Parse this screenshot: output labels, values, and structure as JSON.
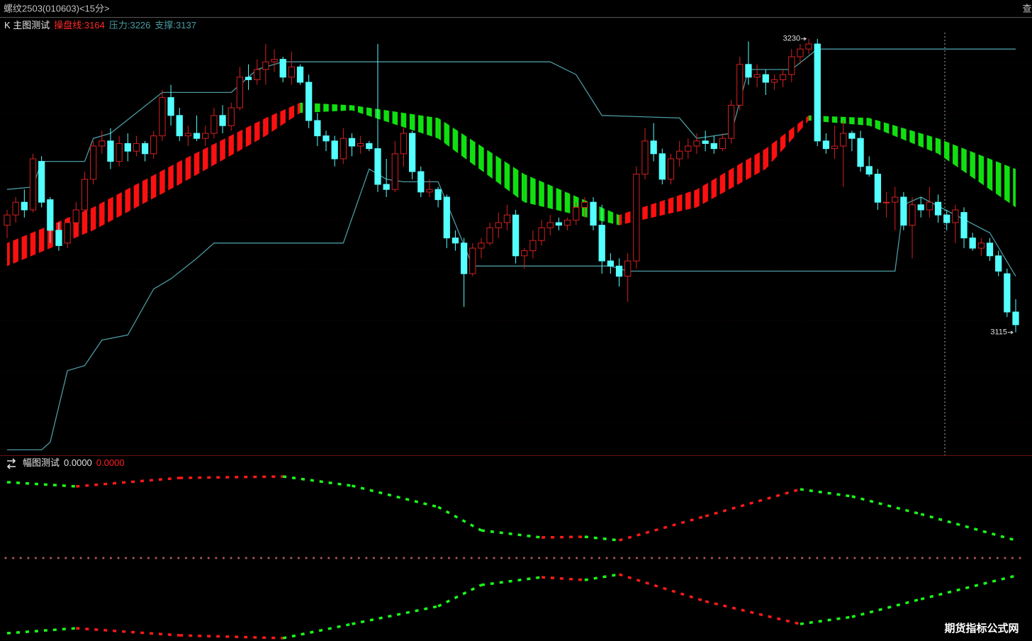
{
  "header": {
    "title": "螺纹2503(010603)<15分>",
    "button": "查"
  },
  "chart_data": [
    {
      "type": "candlestick",
      "title": "K 主图测试",
      "legend": [
        {
          "label": "操盘线:",
          "value": 3164,
          "color": "#ff2a2a"
        },
        {
          "label": "压力:",
          "value": 3226,
          "color": "#4a9aa0"
        },
        {
          "label": "支撑:",
          "value": 3137,
          "color": "#4a9aa0"
        }
      ],
      "xlim": [
        0,
        117
      ],
      "ylim": [
        3068,
        3238
      ],
      "up_color": "#d42020",
      "down_color": "#54ffff",
      "open": [
        3157,
        3161,
        3166,
        3163,
        3182,
        3167,
        3155,
        3150,
        3158,
        3163,
        3175,
        3188,
        3190,
        3182,
        3189,
        3186,
        3189,
        3185,
        3192,
        3207,
        3200,
        3192,
        3193,
        3191,
        3193,
        3200,
        3196,
        3203,
        3215,
        3214,
        3218,
        3221,
        3222,
        3215,
        3219,
        3213,
        3198,
        3192,
        3190,
        3183,
        3191,
        3188,
        3189,
        3187,
        3173,
        3171,
        3185,
        3193,
        3178,
        3170,
        3171,
        3168,
        3152,
        3150,
        3138,
        3148,
        3150,
        3156,
        3158,
        3161,
        3145,
        3147,
        3151,
        3156,
        3158,
        3157,
        3159,
        3164,
        3166,
        3157,
        3143,
        3141,
        3137,
        3143,
        3177,
        3190,
        3185,
        3175,
        3183,
        3186,
        3188,
        3190,
        3189,
        3187,
        3191,
        3204,
        3220,
        3215,
        3216,
        3213,
        3214,
        3216,
        3223,
        3226,
        3228,
        3190,
        3187,
        3188,
        3193,
        3191,
        3180,
        3177,
        3166,
        3166,
        3168,
        3157,
        3165,
        3163,
        3166,
        3161,
        3158,
        3162,
        3152,
        3148,
        3150,
        3145,
        3138,
        3123
      ],
      "high": [
        3163,
        3168,
        3171,
        3185,
        3184,
        3168,
        3158,
        3160,
        3166,
        3178,
        3190,
        3194,
        3195,
        3192,
        3193,
        3192,
        3190,
        3194,
        3210,
        3212,
        3203,
        3196,
        3200,
        3196,
        3203,
        3204,
        3205,
        3219,
        3220,
        3222,
        3228,
        3226,
        3223,
        3225,
        3220,
        3216,
        3201,
        3194,
        3192,
        3195,
        3193,
        3192,
        3190,
        3228,
        3183,
        3190,
        3195,
        3194,
        3180,
        3175,
        3172,
        3169,
        3155,
        3152,
        3150,
        3152,
        3158,
        3162,
        3165,
        3163,
        3148,
        3155,
        3159,
        3161,
        3160,
        3160,
        3166,
        3168,
        3168,
        3165,
        3146,
        3144,
        3146,
        3180,
        3195,
        3197,
        3187,
        3185,
        3190,
        3191,
        3193,
        3194,
        3192,
        3193,
        3206,
        3223,
        3229,
        3220,
        3218,
        3216,
        3218,
        3226,
        3228,
        3230,
        3230,
        3193,
        3196,
        3198,
        3194,
        3194,
        3184,
        3179,
        3170,
        3172,
        3170,
        3168,
        3168,
        3172,
        3169,
        3163,
        3165,
        3164,
        3154,
        3152,
        3152,
        3147,
        3140,
        3128
      ],
      "low": [
        3152,
        3158,
        3160,
        3162,
        3164,
        3150,
        3147,
        3148,
        3156,
        3160,
        3173,
        3185,
        3179,
        3180,
        3182,
        3184,
        3182,
        3183,
        3190,
        3196,
        3190,
        3188,
        3190,
        3188,
        3191,
        3193,
        3194,
        3202,
        3210,
        3212,
        3212,
        3217,
        3213,
        3212,
        3212,
        3195,
        3188,
        3186,
        3180,
        3181,
        3184,
        3185,
        3186,
        3170,
        3168,
        3170,
        3180,
        3175,
        3168,
        3168,
        3164,
        3148,
        3147,
        3125,
        3137,
        3144,
        3149,
        3152,
        3155,
        3142,
        3140,
        3144,
        3149,
        3153,
        3155,
        3155,
        3157,
        3160,
        3155,
        3138,
        3138,
        3133,
        3127,
        3140,
        3175,
        3182,
        3173,
        3173,
        3180,
        3183,
        3185,
        3186,
        3185,
        3186,
        3189,
        3202,
        3212,
        3211,
        3208,
        3210,
        3211,
        3213,
        3220,
        3224,
        3188,
        3185,
        3183,
        3172,
        3186,
        3178,
        3176,
        3163,
        3160,
        3155,
        3155,
        3144,
        3160,
        3160,
        3158,
        3155,
        3150,
        3148,
        3147,
        3145,
        3143,
        3137,
        3121,
        3115
      ],
      "close": [
        3161,
        3166,
        3163,
        3183,
        3166,
        3155,
        3149,
        3158,
        3163,
        3175,
        3188,
        3190,
        3182,
        3189,
        3186,
        3189,
        3185,
        3192,
        3207,
        3200,
        3192,
        3193,
        3191,
        3193,
        3200,
        3196,
        3203,
        3215,
        3214,
        3218,
        3221,
        3222,
        3215,
        3219,
        3213,
        3198,
        3192,
        3190,
        3183,
        3191,
        3188,
        3189,
        3187,
        3173,
        3171,
        3185,
        3193,
        3178,
        3170,
        3171,
        3167,
        3152,
        3150,
        3138,
        3148,
        3150,
        3156,
        3158,
        3161,
        3145,
        3147,
        3151,
        3156,
        3158,
        3157,
        3159,
        3164,
        3166,
        3157,
        3143,
        3141,
        3137,
        3143,
        3177,
        3190,
        3185,
        3175,
        3183,
        3186,
        3188,
        3190,
        3189,
        3187,
        3191,
        3204,
        3220,
        3215,
        3216,
        3213,
        3214,
        3216,
        3223,
        3226,
        3228,
        3190,
        3187,
        3188,
        3193,
        3191,
        3180,
        3177,
        3166,
        3166,
        3168,
        3157,
        3165,
        3163,
        3166,
        3161,
        3158,
        3163,
        3152,
        3148,
        3150,
        3145,
        3139,
        3123,
        3118
      ],
      "high_label": 3230,
      "low_label": 3115,
      "ribbon": {
        "x": [
          0,
          10,
          20,
          30,
          34,
          40,
          50,
          60,
          71,
          80,
          88,
          93,
          100,
          108,
          117
        ],
        "upper": [
          3150,
          3164,
          3182,
          3199,
          3205,
          3204,
          3199,
          3177,
          3161,
          3171,
          3187,
          3200,
          3199,
          3191,
          3179
        ],
        "lower": [
          3141,
          3155,
          3173,
          3192,
          3201,
          3202,
          3191,
          3166,
          3157,
          3164,
          3179,
          3198,
          3196,
          3185,
          3164
        ],
        "up_color": "#ff1010",
        "down_color": "#10e010"
      },
      "resistance": {
        "x": [
          0,
          3,
          4,
          9,
          10,
          12,
          18,
          26,
          29,
          32,
          63,
          66,
          69,
          78,
          80,
          84,
          86,
          91,
          94,
          117
        ],
        "values": [
          3171,
          3172,
          3182,
          3182,
          3191,
          3193,
          3209,
          3209,
          3218,
          3221,
          3221,
          3216,
          3200,
          3199,
          3191,
          3193,
          3218,
          3218,
          3226,
          3226
        ],
        "color": "#4a9aa0"
      },
      "support": {
        "x": [
          0,
          4,
          5,
          7,
          9,
          11,
          14,
          17,
          19,
          22,
          24,
          39,
          42,
          44,
          46,
          50,
          54,
          70,
          72,
          103,
          104,
          106,
          114,
          117
        ],
        "values": [
          3069,
          3069,
          3072,
          3100,
          3102,
          3112,
          3114,
          3132,
          3136,
          3144,
          3150,
          3150,
          3179,
          3175,
          3174,
          3174,
          3141,
          3141,
          3139,
          3139,
          3165,
          3168,
          3154,
          3137
        ],
        "color": "#4a9aa0"
      }
    },
    {
      "type": "line",
      "title": "幅图测试",
      "readouts": [
        {
          "value": 0,
          "label": "0.0000",
          "color": "#e0e0e0"
        },
        {
          "value": 0,
          "label": "0.0000",
          "color": "#ff2020"
        }
      ],
      "xlim": [
        0,
        117
      ],
      "ylim": [
        -1.15,
        1.15
      ],
      "grow_color": "#ff1a1a",
      "shrink_color": "#1aff1a",
      "series": [
        {
          "x": [
            0,
            8,
            20,
            32,
            40,
            50,
            55,
            62,
            67,
            71,
            81,
            92,
            98,
            106,
            117
          ],
          "values": [
            1.07,
            1.01,
            1.13,
            1.15,
            1.02,
            0.72,
            0.39,
            0.29,
            0.3,
            0.25,
            0.59,
            0.97,
            0.87,
            0.62,
            0.25
          ]
        },
        {
          "x": [
            0,
            8,
            20,
            32,
            40,
            50,
            55,
            62,
            67,
            71,
            81,
            92,
            98,
            106,
            117
          ],
          "values": [
            -1.06,
            -0.99,
            -1.09,
            -1.13,
            -0.93,
            -0.68,
            -0.38,
            -0.27,
            -0.31,
            -0.23,
            -0.61,
            -0.93,
            -0.83,
            -0.58,
            -0.25
          ]
        }
      ]
    }
  ],
  "watermark": "期货指标公式网"
}
